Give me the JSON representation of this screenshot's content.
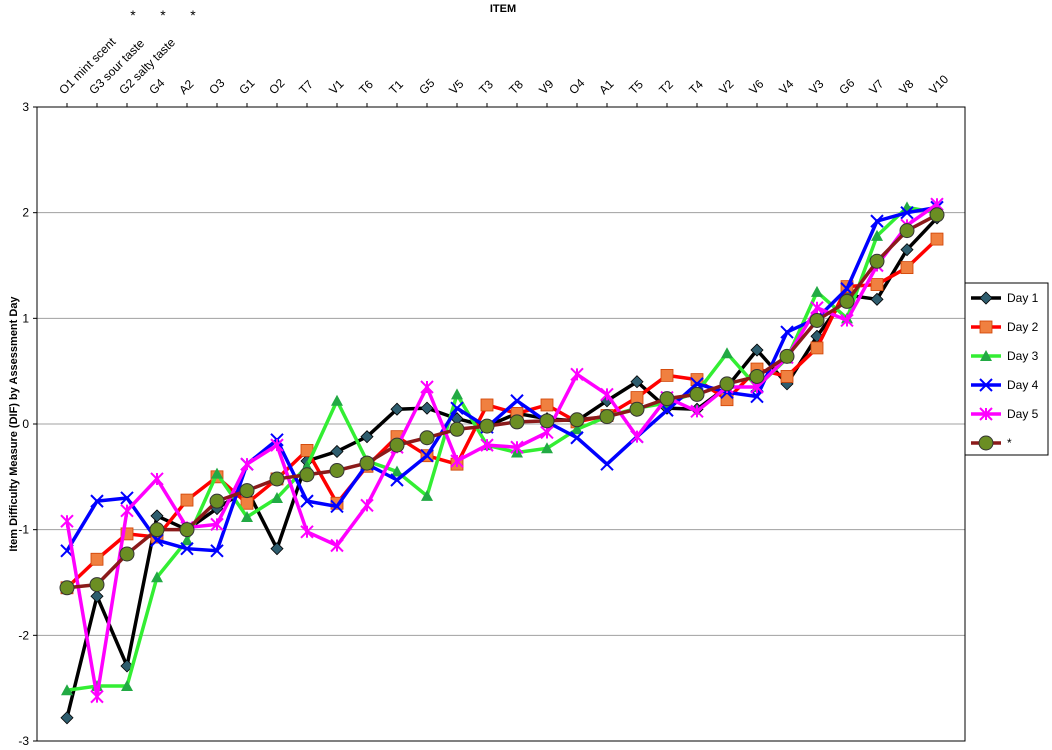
{
  "chart_data": {
    "type": "line",
    "title": "ITEM",
    "y_label": "Item Difficulty Measure (DIF) by Assessment Day",
    "categories": [
      "O1 mint scent",
      "G3 sour taste",
      "G2 salty taste",
      "G4",
      "A2",
      "O3",
      "G1",
      "O2",
      "T7",
      "V1",
      "T6",
      "T1",
      "G5",
      "V5",
      "T3",
      "T8",
      "V9",
      "O4",
      "A1",
      "T5",
      "T2",
      "T4",
      "V2",
      "V6",
      "V4",
      "V3",
      "G6",
      "V7",
      "V8",
      "V10"
    ],
    "annotations": [
      "*",
      "*",
      "*"
    ],
    "ylim": [
      -3,
      3
    ],
    "yticks": [
      -3,
      -2,
      -1,
      0,
      1,
      2,
      3
    ],
    "grid": true,
    "legend": "right",
    "series": [
      {
        "name": "Day 1",
        "color": "#000000",
        "marker": "diamond",
        "marker_color": "#2e5d6e",
        "values": [
          -2.78,
          -1.63,
          -2.29,
          -0.87,
          -1.0,
          -0.8,
          -0.62,
          -1.18,
          -0.35,
          -0.26,
          -0.12,
          0.14,
          0.15,
          0.05,
          -0.02,
          0.1,
          0.05,
          0.03,
          0.22,
          0.4,
          0.15,
          0.14,
          0.35,
          0.7,
          0.38,
          0.83,
          1.22,
          1.18,
          1.65,
          1.95
        ]
      },
      {
        "name": "Day 2",
        "color": "#ff0000",
        "marker": "square",
        "marker_color": "#f08040",
        "values": [
          -1.55,
          -1.28,
          -1.04,
          -1.07,
          -0.72,
          -0.5,
          -0.75,
          -0.52,
          -0.25,
          -0.75,
          -0.4,
          -0.12,
          -0.3,
          -0.38,
          0.18,
          0.1,
          0.18,
          0.02,
          0.08,
          0.25,
          0.46,
          0.42,
          0.23,
          0.52,
          0.45,
          0.72,
          1.3,
          1.32,
          1.48,
          1.75
        ]
      },
      {
        "name": "Day 3",
        "color": "#33ee33",
        "marker": "triangle",
        "marker_color": "#22aa44",
        "values": [
          -2.52,
          -2.48,
          -2.48,
          -1.45,
          -1.1,
          -0.47,
          -0.88,
          -0.7,
          -0.4,
          0.22,
          -0.35,
          -0.45,
          -0.68,
          0.28,
          -0.2,
          -0.27,
          -0.23,
          -0.05,
          0.07,
          0.15,
          0.2,
          0.3,
          0.67,
          0.35,
          0.62,
          1.25,
          1.0,
          1.78,
          2.05,
          2.0
        ]
      },
      {
        "name": "Day 4",
        "color": "#0000ff",
        "marker": "x",
        "marker_color": "#0000ff",
        "values": [
          -1.2,
          -0.73,
          -0.7,
          -1.1,
          -1.18,
          -1.2,
          -0.38,
          -0.15,
          -0.73,
          -0.78,
          -0.38,
          -0.53,
          -0.3,
          0.15,
          -0.03,
          0.22,
          0.02,
          -0.13,
          -0.38,
          -0.12,
          0.13,
          0.38,
          0.3,
          0.26,
          0.87,
          1.0,
          1.28,
          1.92,
          2.0,
          2.05
        ]
      },
      {
        "name": "Day 5",
        "color": "#ff00ff",
        "marker": "star",
        "marker_color": "#ff00ff",
        "values": [
          -0.92,
          -2.58,
          -0.82,
          -0.52,
          -0.98,
          -0.95,
          -0.38,
          -0.2,
          -1.02,
          -1.15,
          -0.77,
          -0.22,
          0.35,
          -0.35,
          -0.2,
          -0.22,
          -0.08,
          0.47,
          0.28,
          -0.12,
          0.25,
          0.12,
          0.35,
          0.35,
          0.63,
          1.1,
          0.98,
          1.5,
          1.88,
          2.08
        ]
      },
      {
        "name": "*",
        "color": "#8b1a1a",
        "marker": "circle",
        "marker_color": "#6b8e23",
        "values": [
          -1.55,
          -1.52,
          -1.23,
          -1.0,
          -1.0,
          -0.73,
          -0.63,
          -0.52,
          -0.48,
          -0.44,
          -0.37,
          -0.2,
          -0.13,
          -0.05,
          -0.02,
          0.02,
          0.03,
          0.04,
          0.07,
          0.14,
          0.24,
          0.28,
          0.38,
          0.45,
          0.64,
          0.98,
          1.16,
          1.54,
          1.83,
          1.98
        ]
      }
    ]
  }
}
